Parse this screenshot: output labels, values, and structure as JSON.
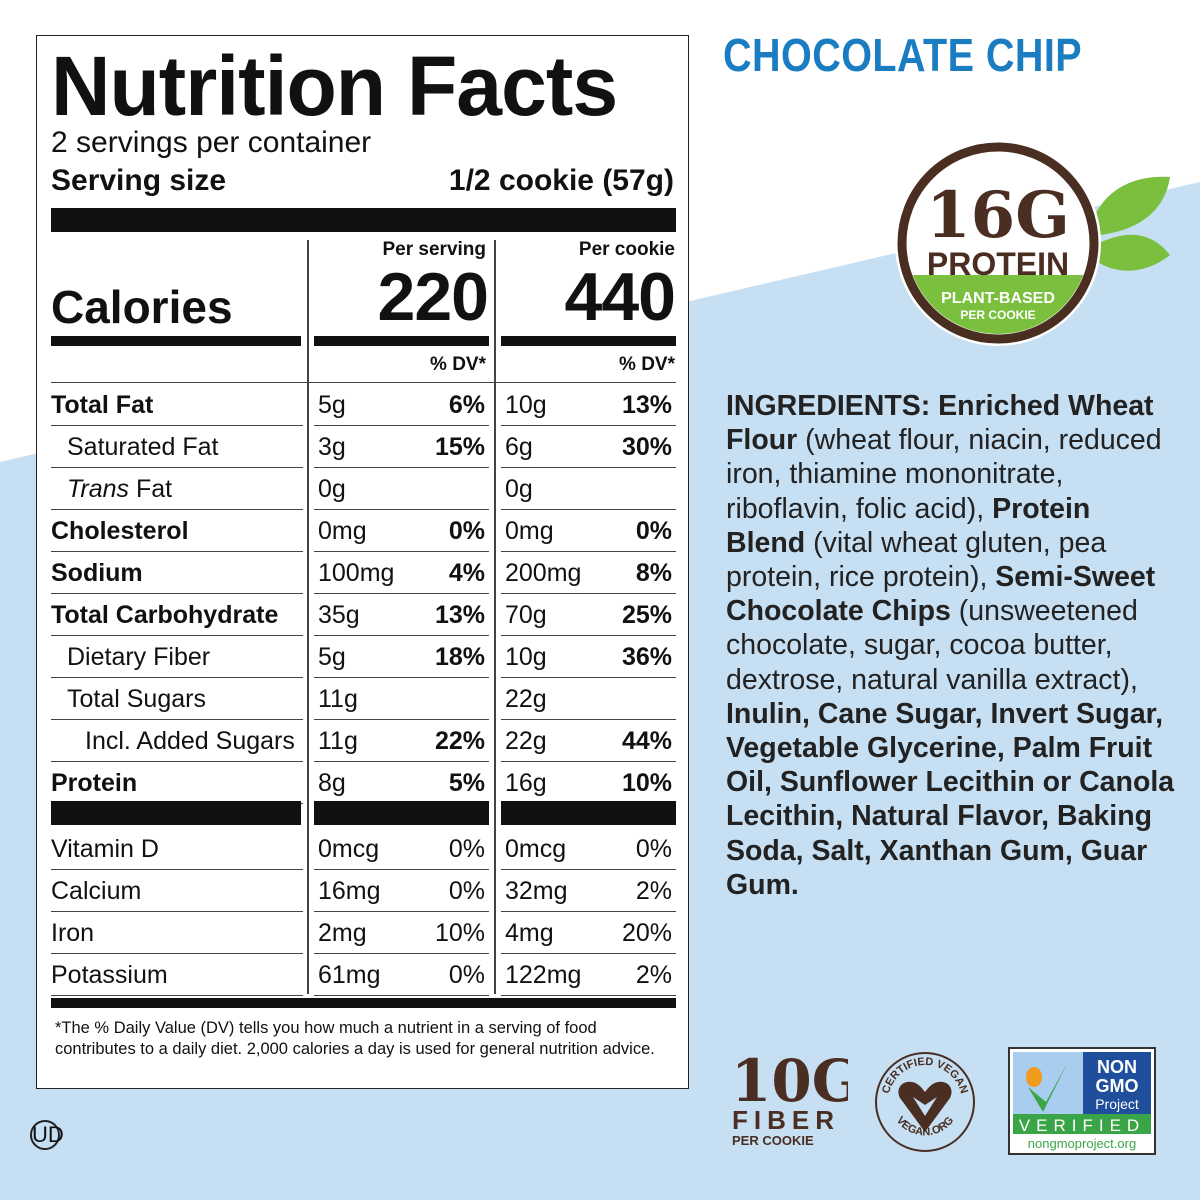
{
  "flavor": "CHOCOLATE CHIP",
  "colors": {
    "background_blue": "#c6dff3",
    "flavor_blue": "#1a7cc1",
    "brown": "#4a2e22",
    "green": "#7bbf3f"
  },
  "panel": {
    "title": "Nutrition Facts",
    "servings": "2 servings per container",
    "serving_size_label": "Serving size",
    "serving_size_value": "1/2 cookie (57g)",
    "calories_label": "Calories",
    "col1_header": "Per serving",
    "col2_header": "Per cookie",
    "col1_calories": "220",
    "col2_calories": "440",
    "dv_header": "% DV*",
    "nutrients": [
      {
        "name": "Total Fat",
        "amt1": "5g",
        "dv1": "6%",
        "amt2": "10g",
        "dv2": "13%",
        "style": "bold"
      },
      {
        "name": "Saturated Fat",
        "amt1": "3g",
        "dv1": "15%",
        "amt2": "6g",
        "dv2": "30%",
        "style": "indent"
      },
      {
        "name_italic": "Trans",
        "name": " Fat",
        "amt1": "0g",
        "dv1": "",
        "amt2": "0g",
        "dv2": "",
        "style": "indent"
      },
      {
        "name": "Cholesterol",
        "amt1": "0mg",
        "dv1": "0%",
        "amt2": "0mg",
        "dv2": "0%",
        "style": "bold"
      },
      {
        "name": "Sodium",
        "amt1": "100mg",
        "dv1": "4%",
        "amt2": "200mg",
        "dv2": "8%",
        "style": "bold"
      },
      {
        "name": "Total Carbohydrate",
        "amt1": "35g",
        "dv1": "13%",
        "amt2": "70g",
        "dv2": "25%",
        "style": "bold"
      },
      {
        "name": "Dietary Fiber",
        "amt1": "5g",
        "dv1": "18%",
        "amt2": "10g",
        "dv2": "36%",
        "style": "indent"
      },
      {
        "name": "Total Sugars",
        "amt1": "11g",
        "dv1": "",
        "amt2": "22g",
        "dv2": "",
        "style": "indent"
      },
      {
        "name": "Incl. Added Sugars",
        "amt1": "11g",
        "dv1": "22%",
        "amt2": "22g",
        "dv2": "44%",
        "style": "indent2"
      },
      {
        "name": "Protein",
        "amt1": "8g",
        "dv1": "5%",
        "amt2": "16g",
        "dv2": "10%",
        "style": "bold"
      }
    ],
    "vitamins": [
      {
        "name": "Vitamin D",
        "amt1": "0mcg",
        "dv1": "0%",
        "amt2": "0mcg",
        "dv2": "0%"
      },
      {
        "name": "Calcium",
        "amt1": "16mg",
        "dv1": "0%",
        "amt2": "32mg",
        "dv2": "2%"
      },
      {
        "name": "Iron",
        "amt1": "2mg",
        "dv1": "10%",
        "amt2": "4mg",
        "dv2": "20%"
      },
      {
        "name": "Potassium",
        "amt1": "61mg",
        "dv1": "0%",
        "amt2": "122mg",
        "dv2": "2%"
      }
    ],
    "footnote": "*The % Daily Value (DV) tells you how much a nutrient in a serving of food contributes to a daily diet. 2,000 calories a day is used for general nutrition advice."
  },
  "protein_badge": {
    "amount": "16G",
    "label": "PROTEIN",
    "sub1": "PLANT-BASED",
    "sub2": "PER COOKIE"
  },
  "ingredients": [
    {
      "t": "INGREDIENTS: Enriched Wheat Flour",
      "b": true
    },
    {
      "t": " (wheat flour, niacin, reduced iron, thiamine mononitrate, riboflavin, folic acid), ",
      "b": false
    },
    {
      "t": "Protein Blend",
      "b": true
    },
    {
      "t": " (vital wheat gluten, pea protein, rice protein), ",
      "b": false
    },
    {
      "t": "Semi-Sweet Chocolate Chips",
      "b": true
    },
    {
      "t": " (unsweetened chocolate, sugar, cocoa butter, dextrose, natural vanilla extract), ",
      "b": false
    },
    {
      "t": "Inulin, Cane Sugar, Invert Sugar, Vegetable Glycerine, Palm Fruit Oil, Sunflower Lecithin or Canola Lecithin, Natural Flavor, Baking Soda, Salt, Xanthan Gum, Guar Gum.",
      "b": true
    }
  ],
  "fiber_badge": {
    "amount": "10G",
    "label": "FIBER",
    "sub": "PER COOKIE"
  },
  "vegan_badge": {
    "top": "CERTIFIED VEGAN",
    "bottom": "VEGAN.ORG"
  },
  "nongmo_badge": {
    "line1": "NON",
    "line2": "GMO",
    "line3": "Project",
    "verified": "VERIFIED",
    "url": "nongmoproject.org"
  },
  "kosher": "UD"
}
